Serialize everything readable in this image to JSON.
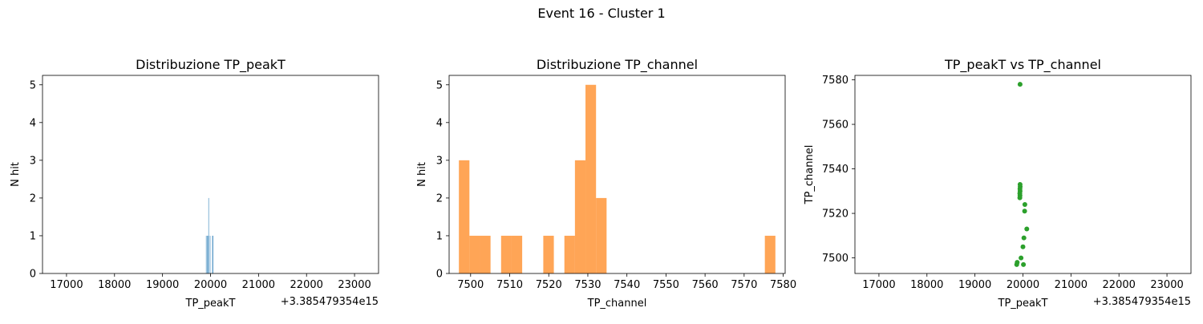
{
  "suptitle": "Event 16 - Cluster 1",
  "chart_data": [
    {
      "type": "bar",
      "title": "Distribuzione TP_peakT",
      "xlabel": "TP_peakT",
      "ylabel": "N hit",
      "x_offset_label": "+3.385479354e15",
      "color": "#1f77b4",
      "bar_opacity": 0.7,
      "xlim": [
        16500,
        23500
      ],
      "ylim": [
        0,
        5.25
      ],
      "xticks": [
        17000,
        18000,
        19000,
        20000,
        21000,
        22000,
        23000
      ],
      "xtick_labels": [
        "17000",
        "18000",
        "19000",
        "20000",
        "21000",
        "22000",
        "23000"
      ],
      "yticks": [
        0,
        1,
        2,
        3,
        4,
        5
      ],
      "ytick_labels": [
        "0",
        "1",
        "2",
        "3",
        "4",
        "5"
      ],
      "bins": [
        {
          "x0": 19905,
          "x1": 19915,
          "value": 1
        },
        {
          "x0": 19925,
          "x1": 19935,
          "value": 1
        },
        {
          "x0": 19945,
          "x1": 19955,
          "value": 1
        },
        {
          "x0": 19955,
          "x1": 19965,
          "value": 2
        },
        {
          "x0": 19985,
          "x1": 19995,
          "value": 1
        },
        {
          "x0": 20035,
          "x1": 20045,
          "value": 1
        },
        {
          "x0": 20045,
          "x1": 20055,
          "value": 1
        }
      ]
    },
    {
      "type": "bar",
      "title": "Distribuzione TP_channel",
      "xlabel": "TP_channel",
      "ylabel": "N hit",
      "color": "#ff7f0e",
      "bar_opacity": 0.7,
      "xlim": [
        7494.5,
        7580.5
      ],
      "ylim": [
        0,
        5.25
      ],
      "xticks": [
        7500,
        7510,
        7520,
        7530,
        7540,
        7550,
        7560,
        7570,
        7580
      ],
      "xtick_labels": [
        "7500",
        "7510",
        "7520",
        "7530",
        "7540",
        "7550",
        "7560",
        "7570",
        "7580"
      ],
      "yticks": [
        0,
        1,
        2,
        3,
        4,
        5
      ],
      "ytick_labels": [
        "0",
        "1",
        "2",
        "3",
        "4",
        "5"
      ],
      "bins": [
        {
          "x0": 7497.0,
          "x1": 7499.7,
          "value": 3
        },
        {
          "x0": 7499.7,
          "x1": 7502.4,
          "value": 1
        },
        {
          "x0": 7502.4,
          "x1": 7505.1,
          "value": 1
        },
        {
          "x0": 7507.8,
          "x1": 7510.5,
          "value": 1
        },
        {
          "x0": 7510.5,
          "x1": 7513.2,
          "value": 1
        },
        {
          "x0": 7518.6,
          "x1": 7521.3,
          "value": 1
        },
        {
          "x0": 7524.0,
          "x1": 7526.7,
          "value": 1
        },
        {
          "x0": 7526.7,
          "x1": 7529.4,
          "value": 3
        },
        {
          "x0": 7529.4,
          "x1": 7532.1,
          "value": 5
        },
        {
          "x0": 7532.1,
          "x1": 7534.8,
          "value": 2
        },
        {
          "x0": 7575.3,
          "x1": 7578.0,
          "value": 1
        }
      ]
    },
    {
      "type": "scatter",
      "title": "TP_peakT vs TP_channel",
      "xlabel": "TP_peakT",
      "ylabel": "TP_channel",
      "x_offset_label": "+3.385479354e15",
      "color": "#2ca02c",
      "xlim": [
        16500,
        23500
      ],
      "ylim": [
        7493,
        7582
      ],
      "xticks": [
        17000,
        18000,
        19000,
        20000,
        21000,
        22000,
        23000
      ],
      "xtick_labels": [
        "17000",
        "18000",
        "19000",
        "20000",
        "21000",
        "22000",
        "23000"
      ],
      "yticks": [
        7500,
        7520,
        7540,
        7560,
        7580
      ],
      "ytick_labels": [
        "7500",
        "7520",
        "7540",
        "7560",
        "7580"
      ],
      "points": [
        {
          "x": 19940,
          "y": 7578
        },
        {
          "x": 19940,
          "y": 7533
        },
        {
          "x": 19942,
          "y": 7532
        },
        {
          "x": 19938,
          "y": 7531
        },
        {
          "x": 19940,
          "y": 7530
        },
        {
          "x": 19935,
          "y": 7529
        },
        {
          "x": 19938,
          "y": 7528
        },
        {
          "x": 19935,
          "y": 7527
        },
        {
          "x": 20040,
          "y": 7524
        },
        {
          "x": 20035,
          "y": 7521
        },
        {
          "x": 20080,
          "y": 7513
        },
        {
          "x": 20020,
          "y": 7509
        },
        {
          "x": 20000,
          "y": 7505
        },
        {
          "x": 19960,
          "y": 7500
        },
        {
          "x": 19880,
          "y": 7498
        },
        {
          "x": 19870,
          "y": 7497
        },
        {
          "x": 20010,
          "y": 7497
        }
      ]
    }
  ]
}
